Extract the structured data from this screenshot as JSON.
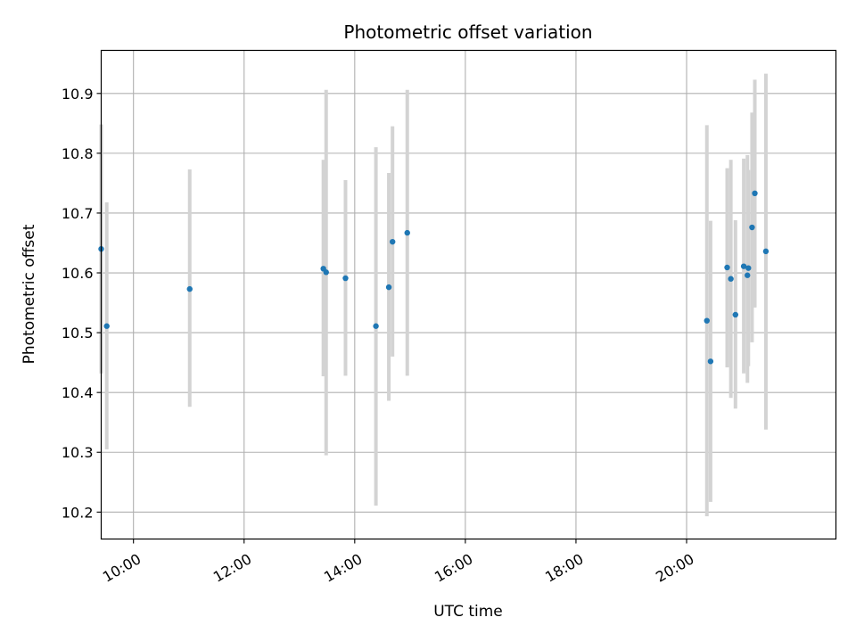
{
  "chart_data": {
    "type": "scatter",
    "title": "Photometric offset variation",
    "xlabel": "UTC time",
    "ylabel": "Photometric offset",
    "x_axis_type": "time",
    "xlim": [
      "09:25",
      "22:42"
    ],
    "ylim": [
      10.155,
      10.972
    ],
    "x_ticks": [
      "10:00",
      "12:00",
      "14:00",
      "16:00",
      "18:00",
      "20:00"
    ],
    "y_ticks": [
      10.2,
      10.3,
      10.4,
      10.5,
      10.6,
      10.7,
      10.8,
      10.9
    ],
    "y_tick_labels": [
      "10.2",
      "10.3",
      "10.4",
      "10.5",
      "10.6",
      "10.7",
      "10.8",
      "10.9"
    ],
    "x_tick_rotation_deg": 30,
    "grid": true,
    "legend": "none",
    "colors": {
      "point": "#1f77b4",
      "errorbar": "#d3d3d3",
      "grid": "#b0b0b0"
    },
    "points": [
      {
        "x": "09:25",
        "y": 10.64,
        "ylow": 10.432,
        "yhigh": 10.848
      },
      {
        "x": "09:31",
        "y": 10.511,
        "ylow": 10.305,
        "yhigh": 10.718
      },
      {
        "x": "11:01",
        "y": 10.573,
        "ylow": 10.376,
        "yhigh": 10.773
      },
      {
        "x": "13:26",
        "y": 10.607,
        "ylow": 10.427,
        "yhigh": 10.789
      },
      {
        "x": "13:29",
        "y": 10.601,
        "ylow": 10.295,
        "yhigh": 10.906
      },
      {
        "x": "13:50",
        "y": 10.591,
        "ylow": 10.428,
        "yhigh": 10.755
      },
      {
        "x": "14:23",
        "y": 10.511,
        "ylow": 10.211,
        "yhigh": 10.81
      },
      {
        "x": "14:37",
        "y": 10.576,
        "ylow": 10.386,
        "yhigh": 10.767
      },
      {
        "x": "14:41",
        "y": 10.652,
        "ylow": 10.46,
        "yhigh": 10.845
      },
      {
        "x": "14:57",
        "y": 10.667,
        "ylow": 10.428,
        "yhigh": 10.906
      },
      {
        "x": "20:22",
        "y": 10.52,
        "ylow": 10.193,
        "yhigh": 10.847
      },
      {
        "x": "20:26",
        "y": 10.452,
        "ylow": 10.217,
        "yhigh": 10.687
      },
      {
        "x": "20:44",
        "y": 10.609,
        "ylow": 10.442,
        "yhigh": 10.775
      },
      {
        "x": "20:48",
        "y": 10.59,
        "ylow": 10.391,
        "yhigh": 10.789
      },
      {
        "x": "20:53",
        "y": 10.53,
        "ylow": 10.373,
        "yhigh": 10.688
      },
      {
        "x": "21:02",
        "y": 10.611,
        "ylow": 10.432,
        "yhigh": 10.791
      },
      {
        "x": "21:06",
        "y": 10.596,
        "ylow": 10.416,
        "yhigh": 10.797
      },
      {
        "x": "21:07",
        "y": 10.608,
        "ylow": 10.444,
        "yhigh": 10.772
      },
      {
        "x": "21:11",
        "y": 10.676,
        "ylow": 10.484,
        "yhigh": 10.868
      },
      {
        "x": "21:14",
        "y": 10.733,
        "ylow": 10.542,
        "yhigh": 10.923
      },
      {
        "x": "21:26",
        "y": 10.636,
        "ylow": 10.338,
        "yhigh": 10.933
      }
    ]
  }
}
